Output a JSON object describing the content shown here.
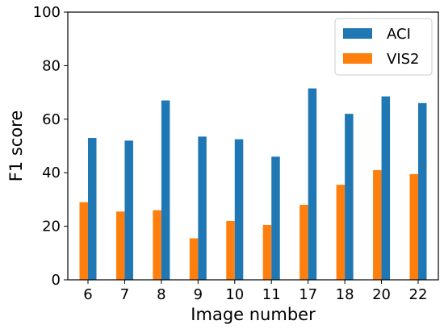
{
  "chart_data": {
    "type": "bar",
    "categories": [
      "6",
      "7",
      "8",
      "9",
      "10",
      "11",
      "17",
      "18",
      "20",
      "22"
    ],
    "series": [
      {
        "name": "ACI",
        "color": "#1f77b4",
        "values": [
          53,
          52,
          67,
          53.5,
          52.5,
          46,
          71.5,
          62,
          68.5,
          66
        ]
      },
      {
        "name": "VIS2",
        "color": "#ff7f0e",
        "values": [
          29,
          25.5,
          26,
          15.5,
          22,
          20.5,
          28,
          35.5,
          41,
          39.5
        ]
      }
    ],
    "xlabel": "Image number",
    "ylabel": "F1 score",
    "ylim": [
      0,
      100
    ],
    "yticks": [
      "0",
      "20",
      "40",
      "60",
      "80",
      "100"
    ],
    "grid": false,
    "legend": "top-right"
  }
}
